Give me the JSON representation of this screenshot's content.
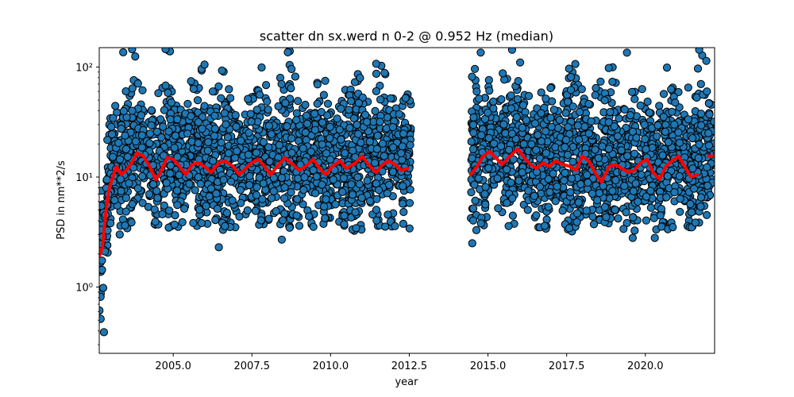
{
  "chart_data": {
    "type": "scatter",
    "title": "scatter dn sx.werd n 0-2 @ 0.952 Hz (median)",
    "xlabel": "year",
    "ylabel": "PSD in nm**2/s",
    "xlim": [
      2002.65,
      2022.2
    ],
    "ylim": [
      0.25,
      150
    ],
    "yscale": "log",
    "grid": false,
    "x_ticks": [
      {
        "value": 2005.0,
        "label": "2005.0"
      },
      {
        "value": 2007.5,
        "label": "2007.5"
      },
      {
        "value": 2010.0,
        "label": "2010.0"
      },
      {
        "value": 2012.5,
        "label": "2012.5"
      },
      {
        "value": 2015.0,
        "label": "2015.0"
      },
      {
        "value": 2017.5,
        "label": "2017.5"
      },
      {
        "value": 2020.0,
        "label": "2020.0"
      }
    ],
    "y_ticks": [
      {
        "value": 1,
        "label": "10⁰"
      },
      {
        "value": 10,
        "label": "10¹"
      },
      {
        "value": 100,
        "label": "10²"
      }
    ],
    "scatter_color": "#1f77b4",
    "scatter_edge": "#000000",
    "median_color": "#ff0000",
    "data_segments": [
      {
        "start": 2002.65,
        "end": 2012.55
      },
      {
        "start": 2014.45,
        "end": 2022.2
      }
    ],
    "outliers": [
      {
        "x": 2006.45,
        "y": 2.3
      },
      {
        "x": 2008.45,
        "y": 2.7
      },
      {
        "x": 2014.5,
        "y": 2.5
      },
      {
        "x": 2003.3,
        "y": 3.0
      },
      {
        "x": 2019.6,
        "y": 2.8
      },
      {
        "x": 2020.3,
        "y": 2.8
      }
    ],
    "median_series": [
      {
        "name": "median",
        "x": [
          2002.65,
          2002.75,
          2002.85,
          2002.95,
          2003.05,
          2003.2,
          2003.35,
          2003.5,
          2003.65,
          2003.85,
          2004.05,
          2004.25,
          2004.45,
          2004.6,
          2004.8,
          2005.0,
          2005.2,
          2005.4,
          2005.6,
          2005.8,
          2006.0,
          2006.2,
          2006.45,
          2006.65,
          2006.9,
          2007.1,
          2007.3,
          2007.5,
          2007.7,
          2007.9,
          2008.1,
          2008.3,
          2008.55,
          2008.8,
          2009.0,
          2009.2,
          2009.45,
          2009.65,
          2009.85,
          2010.05,
          2010.3,
          2010.5,
          2010.8,
          2011.0,
          2011.2,
          2011.45,
          2011.65,
          2011.85,
          2012.05,
          2012.25,
          2012.45
        ],
        "y": [
          1.9,
          2.3,
          4.5,
          7.5,
          9.5,
          12.5,
          10.5,
          11.5,
          13.0,
          16.5,
          15.5,
          12.5,
          9.5,
          11.0,
          15.0,
          14.5,
          12.5,
          10.5,
          13.0,
          13.5,
          12.5,
          11.0,
          13.5,
          14.0,
          12.5,
          10.5,
          12.0,
          13.5,
          14.5,
          12.5,
          10.5,
          12.5,
          15.0,
          13.0,
          11.5,
          12.5,
          14.5,
          12.0,
          10.5,
          12.5,
          14.0,
          12.0,
          13.5,
          15.5,
          13.0,
          11.0,
          13.0,
          14.0,
          13.0,
          11.5,
          12.0
        ]
      },
      {
        "name": "median",
        "x": [
          2014.45,
          2014.65,
          2014.85,
          2015.05,
          2015.25,
          2015.45,
          2015.7,
          2015.95,
          2016.15,
          2016.35,
          2016.55,
          2016.75,
          2016.95,
          2017.15,
          2017.4,
          2017.6,
          2017.8,
          2018.0,
          2018.2,
          2018.4,
          2018.6,
          2018.85,
          2019.05,
          2019.25,
          2019.45,
          2019.65,
          2019.85,
          2020.05,
          2020.25,
          2020.45,
          2020.65,
          2020.85,
          2021.05,
          2021.25,
          2021.45,
          2021.65
        ],
        "y": [
          10.5,
          12.5,
          15.5,
          17.0,
          15.0,
          13.0,
          15.5,
          18.0,
          15.0,
          13.0,
          12.0,
          13.5,
          12.5,
          14.0,
          13.0,
          12.5,
          11.5,
          15.5,
          14.0,
          11.0,
          9.0,
          12.5,
          13.0,
          12.0,
          11.0,
          11.5,
          13.5,
          14.5,
          11.0,
          9.5,
          12.5,
          14.0,
          15.5,
          12.5,
          10.0,
          10.5
        ]
      },
      {
        "name": "median",
        "x": [
          2022.0,
          2022.2
        ],
        "y": [
          15.5,
          15.5
        ]
      }
    ]
  }
}
